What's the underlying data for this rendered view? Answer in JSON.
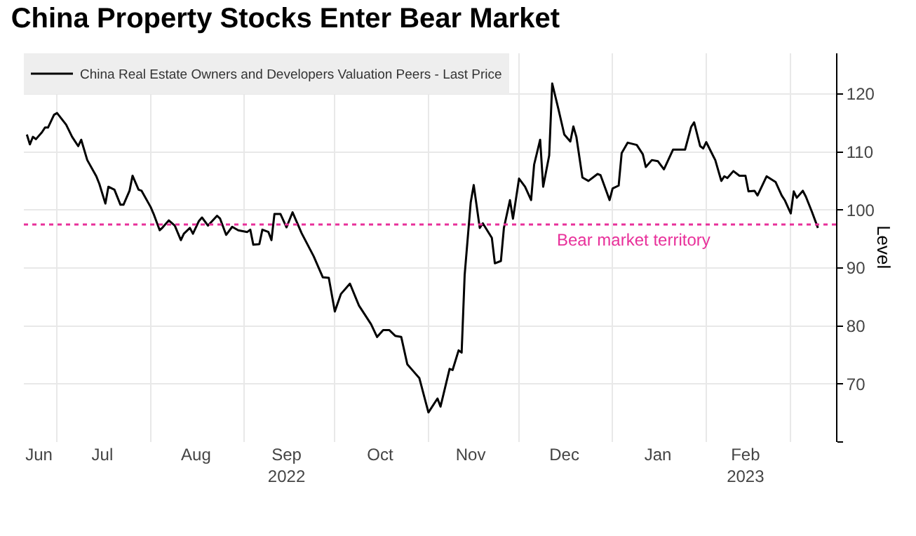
{
  "chart_data": {
    "type": "line",
    "title": "China Property Stocks Enter Bear Market",
    "ylabel": "Level",
    "x": [
      "2022-06-21",
      "2022-06-22",
      "2022-06-23",
      "2022-06-24",
      "2022-06-26",
      "2022-06-27",
      "2022-06-28",
      "2022-06-30",
      "2022-07-01",
      "2022-07-04",
      "2022-07-06",
      "2022-07-08",
      "2022-07-09",
      "2022-07-11",
      "2022-07-14",
      "2022-07-15",
      "2022-07-17",
      "2022-07-18",
      "2022-07-20",
      "2022-07-22",
      "2022-07-23",
      "2022-07-25",
      "2022-07-26",
      "2022-07-28",
      "2022-07-29",
      "2022-08-01",
      "2022-08-02",
      "2022-08-04",
      "2022-08-05",
      "2022-08-07",
      "2022-08-09",
      "2022-08-11",
      "2022-08-12",
      "2022-08-14",
      "2022-08-15",
      "2022-08-17",
      "2022-08-18",
      "2022-08-20",
      "2022-08-23",
      "2022-08-24",
      "2022-08-26",
      "2022-08-28",
      "2022-08-30",
      "2022-09-02",
      "2022-09-03",
      "2022-09-04",
      "2022-09-06",
      "2022-09-07",
      "2022-09-09",
      "2022-09-10",
      "2022-09-11",
      "2022-09-13",
      "2022-09-15",
      "2022-09-17",
      "2022-09-20",
      "2022-09-24",
      "2022-09-27",
      "2022-09-29",
      "2022-10-01",
      "2022-10-03",
      "2022-10-06",
      "2022-10-09",
      "2022-10-13",
      "2022-10-15",
      "2022-10-17",
      "2022-10-19",
      "2022-10-21",
      "2022-10-23",
      "2022-10-25",
      "2022-10-27",
      "2022-10-29",
      "2022-11-01",
      "2022-11-04",
      "2022-11-05",
      "2022-11-08",
      "2022-11-09",
      "2022-11-11",
      "2022-11-12",
      "2022-11-13",
      "2022-11-15",
      "2022-11-16",
      "2022-11-18",
      "2022-11-19",
      "2022-11-22",
      "2022-11-23",
      "2022-11-25",
      "2022-11-26",
      "2022-11-28",
      "2022-11-29",
      "2022-12-01",
      "2022-12-03",
      "2022-12-05",
      "2022-12-06",
      "2022-12-08",
      "2022-12-09",
      "2022-12-11",
      "2022-12-12",
      "2022-12-14",
      "2022-12-16",
      "2022-12-18",
      "2022-12-19",
      "2022-12-20",
      "2022-12-22",
      "2022-12-24",
      "2022-12-27",
      "2022-12-28",
      "2022-12-31",
      "2023-01-01",
      "2023-01-03",
      "2023-01-04",
      "2023-01-06",
      "2023-01-09",
      "2023-01-11",
      "2023-01-12",
      "2023-01-14",
      "2023-01-16",
      "2023-01-18",
      "2023-01-21",
      "2023-01-25",
      "2023-01-27",
      "2023-01-28",
      "2023-01-30",
      "2023-01-31",
      "2023-02-01",
      "2023-02-04",
      "2023-02-06",
      "2023-02-07",
      "2023-02-08",
      "2023-02-10",
      "2023-02-12",
      "2023-02-14",
      "2023-02-15",
      "2023-02-17",
      "2023-02-18",
      "2023-02-21",
      "2023-02-24",
      "2023-02-26",
      "2023-02-27",
      "2023-03-01",
      "2023-03-02",
      "2023-03-03",
      "2023-03-05",
      "2023-03-06",
      "2023-03-08",
      "2023-03-10"
    ],
    "series": [
      {
        "name": "China Real Estate Owners and Developers Valuation Peers - Last Price",
        "color": "#000000",
        "values": [
          113.0,
          111.3,
          112.6,
          112.2,
          113.4,
          114.2,
          114.2,
          116.4,
          116.7,
          114.7,
          112.6,
          111.0,
          112.1,
          108.6,
          105.8,
          104.5,
          101.1,
          104.0,
          103.5,
          100.9,
          100.9,
          103.3,
          105.9,
          103.5,
          103.3,
          100.5,
          99.3,
          96.5,
          97.0,
          98.2,
          97.3,
          94.8,
          95.9,
          96.9,
          95.9,
          98.1,
          98.7,
          97.3,
          99.0,
          98.5,
          95.7,
          97.1,
          96.5,
          96.2,
          96.6,
          94.0,
          94.1,
          96.6,
          96.2,
          94.8,
          99.3,
          99.3,
          97.0,
          99.6,
          96.0,
          92.0,
          88.4,
          88.3,
          82.5,
          85.5,
          87.3,
          83.5,
          80.3,
          78.1,
          79.3,
          79.3,
          78.3,
          78.1,
          73.4,
          72.2,
          71.0,
          65.1,
          67.5,
          66.1,
          72.6,
          72.4,
          75.8,
          75.4,
          88.8,
          101.3,
          104.3,
          96.9,
          97.7,
          95.2,
          90.8,
          91.2,
          96.9,
          101.7,
          98.5,
          105.4,
          104.0,
          101.7,
          107.8,
          112.1,
          104.0,
          109.4,
          121.8,
          117.5,
          113.0,
          111.8,
          114.4,
          112.6,
          105.6,
          105.0,
          106.2,
          106.0,
          101.7,
          103.7,
          104.2,
          109.8,
          111.6,
          111.2,
          109.6,
          107.4,
          108.6,
          108.4,
          107.0,
          110.4,
          110.4,
          114.3,
          115.1,
          111.0,
          110.6,
          111.7,
          108.6,
          105.0,
          105.8,
          105.5,
          106.7,
          105.9,
          105.9,
          103.2,
          103.3,
          102.5,
          105.8,
          104.8,
          102.5,
          101.7,
          99.4,
          103.2,
          102.1,
          103.3,
          102.3,
          99.7,
          96.9
        ]
      }
    ],
    "xlim": [
      "2022-06-20",
      "2023-03-16"
    ],
    "xticks": [
      {
        "value": "2022-06-25",
        "label": "Jun"
      },
      {
        "value": "2022-07-16",
        "label": "Jul"
      },
      {
        "value": "2022-08-16",
        "label": "Aug"
      },
      {
        "value": "2022-09-15",
        "label": "Sep\n2022"
      },
      {
        "value": "2022-10-16",
        "label": "Oct"
      },
      {
        "value": "2022-11-15",
        "label": "Nov"
      },
      {
        "value": "2022-12-16",
        "label": "Dec"
      },
      {
        "value": "2023-01-16",
        "label": "Jan"
      },
      {
        "value": "2023-02-14",
        "label": "Feb\n2023"
      },
      {
        "value": "2022-07-01",
        "label": null
      },
      {
        "value": "2022-08-01",
        "label": null
      },
      {
        "value": "2022-09-01",
        "label": null
      },
      {
        "value": "2022-10-01",
        "label": null
      },
      {
        "value": "2022-11-01",
        "label": null
      },
      {
        "value": "2022-12-01",
        "label": null
      },
      {
        "value": "2023-01-01",
        "label": null
      },
      {
        "value": "2023-02-01",
        "label": null
      },
      {
        "value": "2023-03-01",
        "label": null
      }
    ],
    "ylim": [
      60,
      127
    ],
    "yticks": [
      {
        "value": 60,
        "label": null
      },
      70,
      80,
      90,
      100,
      110,
      120
    ],
    "ref_lines": [
      {
        "axis": "y",
        "value": 97.5,
        "label": "Bear market territory",
        "color": "#e8309a",
        "line_style": "dotted"
      }
    ],
    "grid": true,
    "legend": "top left",
    "marker": "none",
    "line_style": "solid"
  }
}
